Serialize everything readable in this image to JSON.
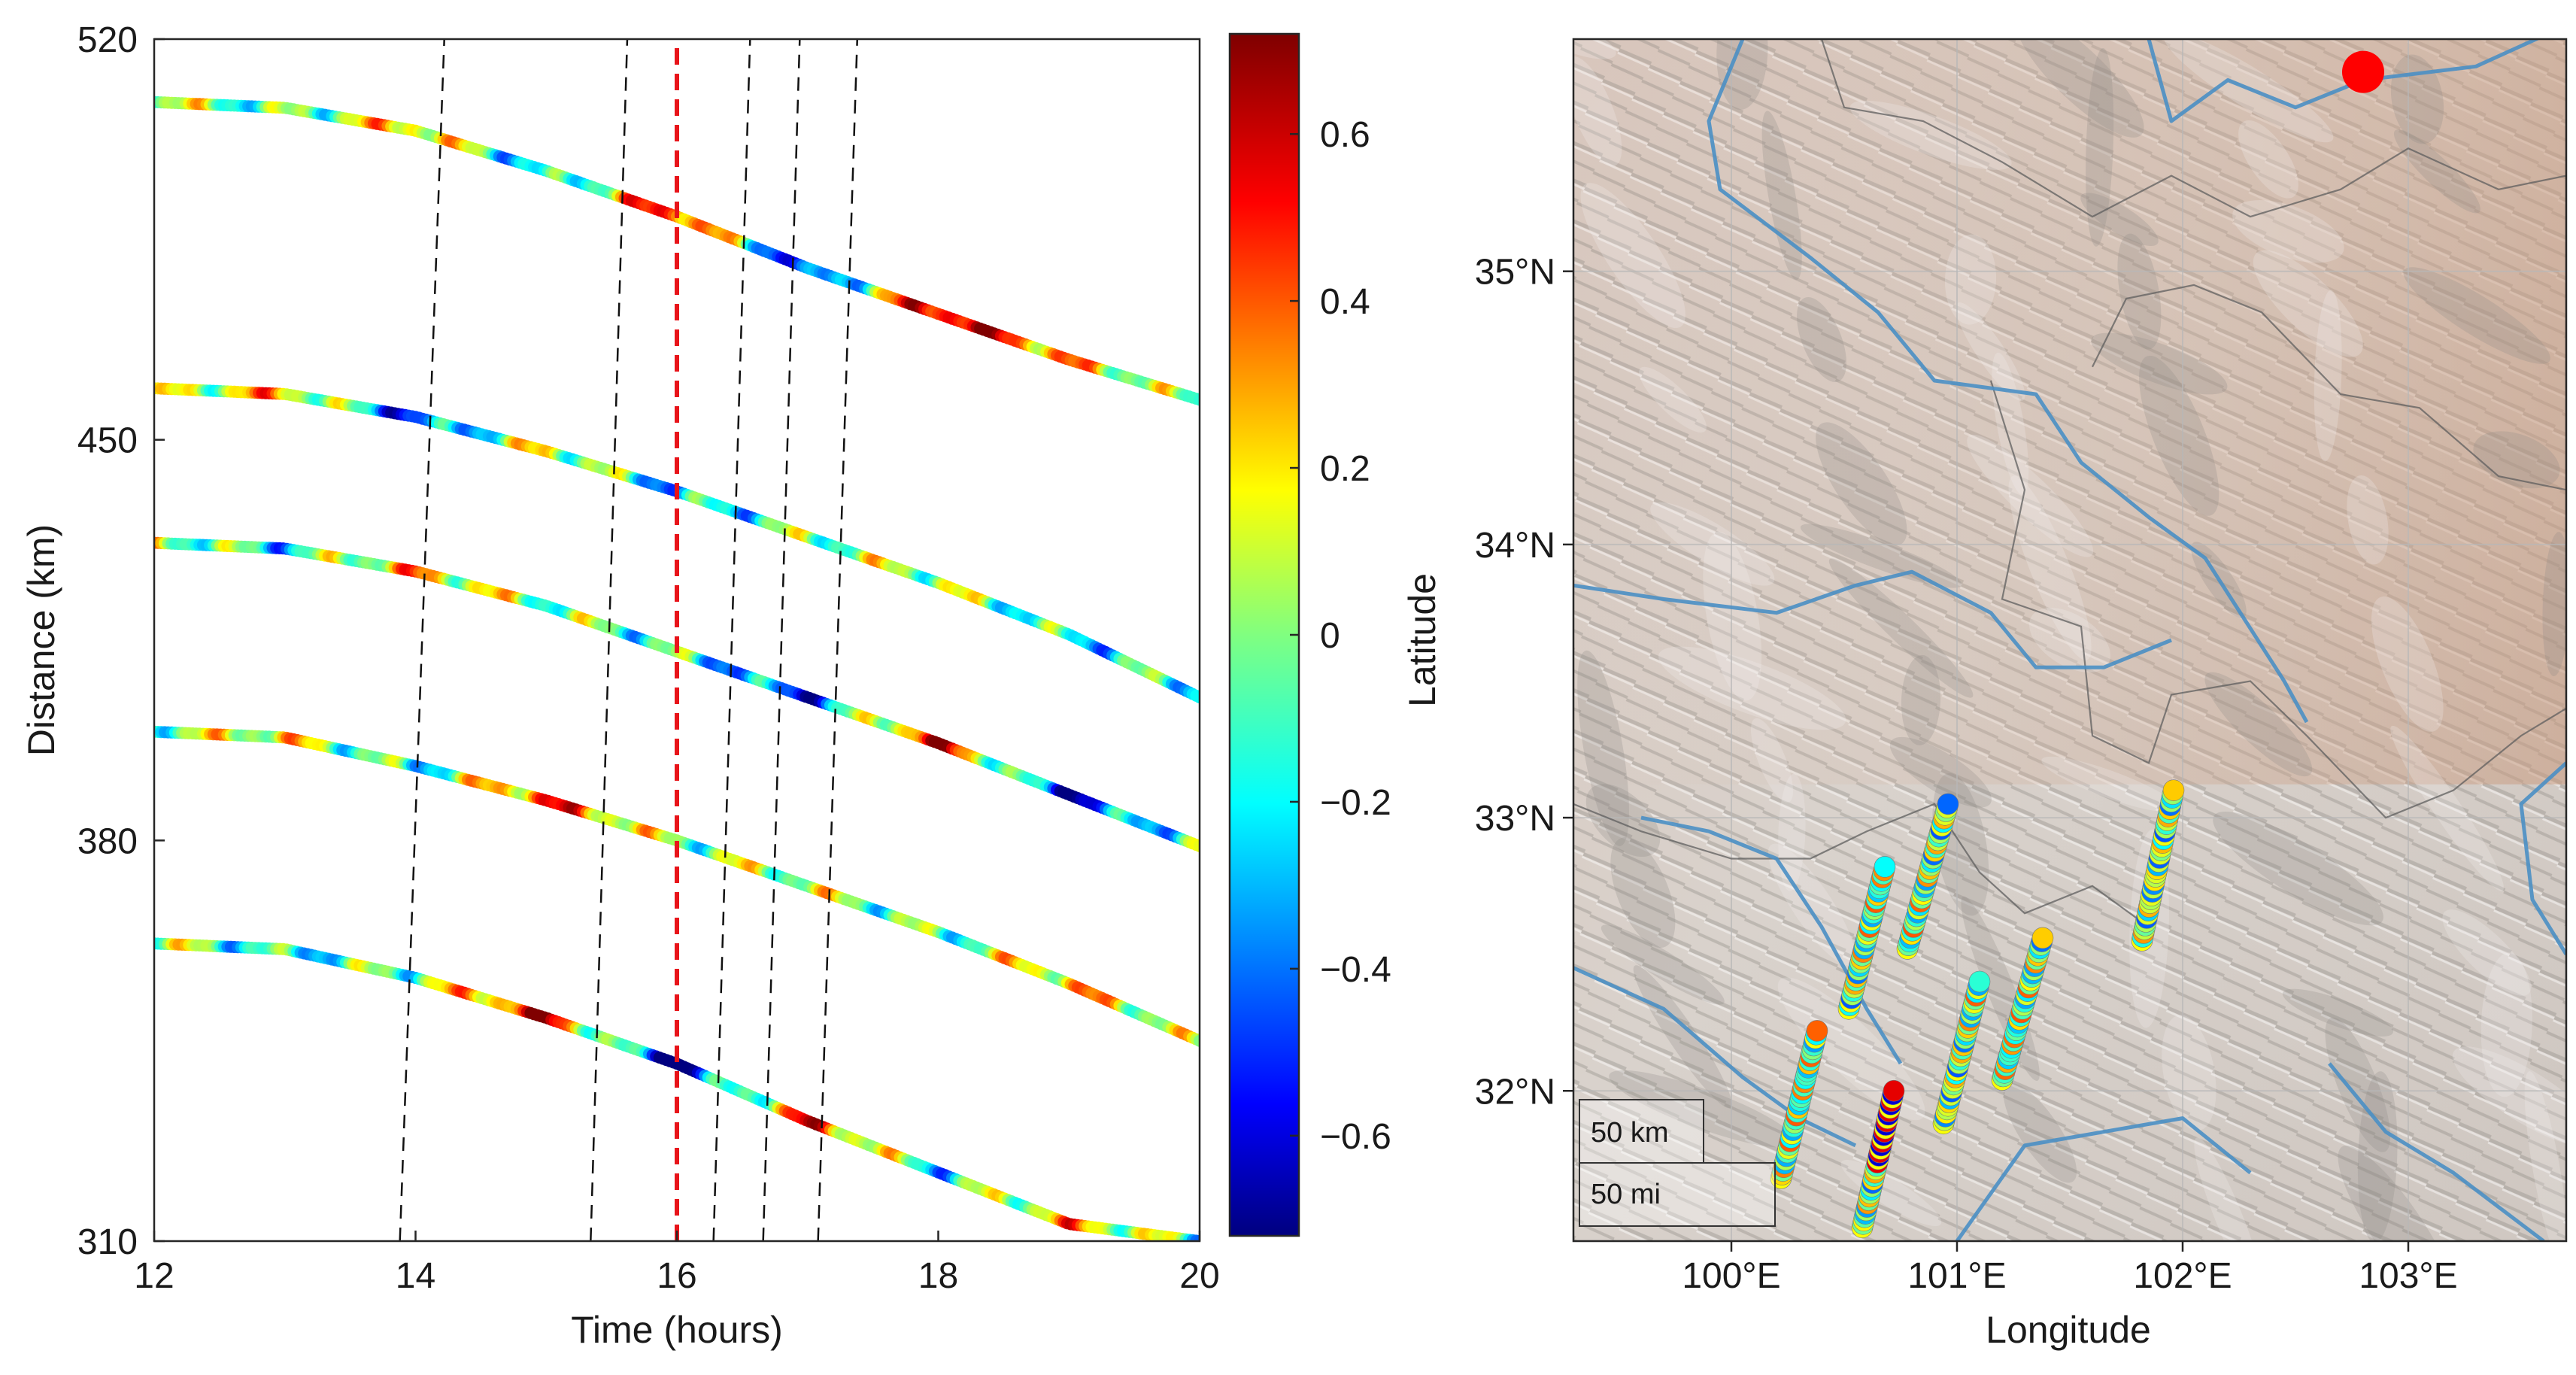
{
  "chart_data": [
    {
      "type": "scatter",
      "title": "",
      "xlabel": "Time (hours)",
      "ylabel": "Distance (km)",
      "xlim": [
        12,
        20
      ],
      "ylim": [
        310,
        520
      ],
      "xticks": [
        12,
        14,
        16,
        18,
        20
      ],
      "yticks": [
        310,
        380,
        450,
        520
      ],
      "xtick_labels": [
        "12",
        "14",
        "16",
        "18",
        "20"
      ],
      "ytick_labels": [
        "310",
        "380",
        "450",
        "520"
      ],
      "grid": false,
      "series": [
        {
          "x": [
            12,
            13,
            14,
            15,
            16,
            17,
            18,
            19,
            20
          ],
          "y": [
            509,
            508,
            504,
            497,
            489,
            480,
            472,
            464,
            457
          ],
          "values": [
            0.1,
            -0.1,
            0.3,
            -0.3,
            0.6,
            -0.6,
            0.7,
            0.3,
            -0.1
          ]
        },
        {
          "x": [
            12,
            13,
            14,
            15,
            16,
            17,
            18,
            19,
            20
          ],
          "y": [
            459,
            458,
            454,
            448,
            441,
            433,
            425,
            416,
            405
          ],
          "values": [
            0.0,
            0.3,
            -0.5,
            0.2,
            -0.3,
            0.0,
            0.1,
            -0.2,
            -0.1
          ]
        },
        {
          "x": [
            12,
            13,
            14,
            15,
            16,
            17,
            18,
            19,
            20
          ],
          "y": [
            432,
            431,
            427,
            421,
            413,
            405,
            397,
            388,
            379
          ],
          "values": [
            0.1,
            -0.2,
            0.3,
            0.0,
            -0.1,
            -0.5,
            0.6,
            -0.6,
            0.0
          ]
        },
        {
          "x": [
            12,
            13,
            14,
            15,
            16,
            17,
            18,
            19,
            20
          ],
          "y": [
            399,
            398,
            393,
            387,
            380,
            372,
            364,
            355,
            345
          ],
          "values": [
            0.0,
            0.2,
            -0.2,
            0.5,
            0.0,
            0.1,
            -0.1,
            0.3,
            0.0
          ]
        },
        {
          "x": [
            12,
            13,
            14,
            15,
            16,
            17,
            18,
            19,
            20
          ],
          "y": [
            362,
            361,
            356,
            349,
            341,
            331,
            322,
            313,
            310
          ],
          "values": [
            0.1,
            -0.2,
            0.0,
            0.6,
            -0.7,
            0.5,
            -0.2,
            0.3,
            -0.1
          ]
        }
      ],
      "dashed_lines_black": [
        {
          "x": [
            13.88,
            14.22
          ],
          "y": [
            310,
            520
          ]
        },
        {
          "x": [
            15.34,
            15.62
          ],
          "y": [
            310,
            520
          ]
        },
        {
          "x": [
            16.28,
            16.56
          ],
          "y": [
            310,
            520
          ]
        },
        {
          "x": [
            16.66,
            16.94
          ],
          "y": [
            310,
            520
          ]
        },
        {
          "x": [
            17.08,
            17.38
          ],
          "y": [
            310,
            520
          ]
        }
      ],
      "dashed_line_red": {
        "x": [
          16,
          16
        ],
        "y": [
          310,
          520
        ]
      },
      "colorbar": {
        "colormap": "jet",
        "range": [
          -0.72,
          0.72
        ],
        "ticks": [
          -0.6,
          -0.4,
          -0.2,
          0,
          0.2,
          0.4,
          0.6
        ],
        "tick_labels": [
          "−0.6",
          "−0.4",
          "−0.2",
          "0",
          "0.2",
          "0.4",
          "0.6"
        ]
      }
    },
    {
      "type": "scatter",
      "title": "",
      "xlabel": "Longitude",
      "ylabel": "Latitude",
      "xlim": [
        99.3,
        103.7
      ],
      "ylim": [
        31.45,
        35.85
      ],
      "xticks": [
        100,
        101,
        102,
        103
      ],
      "yticks": [
        32,
        33,
        34,
        35
      ],
      "xtick_labels": [
        "100°E",
        "101°E",
        "102°E",
        "103°E"
      ],
      "ytick_labels": [
        "32°N",
        "33°N",
        "34°N",
        "35°N"
      ],
      "basemap": "shaded relief",
      "grid": true,
      "scale_bar": {
        "km_label": "50 km",
        "mi_label": "50 mi"
      },
      "source_marker": {
        "lon": 102.8,
        "lat": 35.73,
        "color": "#ff0000"
      },
      "station_tracks": [
        {
          "lon": [
            100.22,
            100.38
          ],
          "lat": [
            31.68,
            32.22
          ]
        },
        {
          "lon": [
            100.58,
            100.72
          ],
          "lat": [
            31.5,
            32.0
          ]
        },
        {
          "lon": [
            100.52,
            100.68
          ],
          "lat": [
            32.3,
            32.82
          ]
        },
        {
          "lon": [
            100.78,
            100.96
          ],
          "lat": [
            32.52,
            33.05
          ]
        },
        {
          "lon": [
            100.94,
            101.1
          ],
          "lat": [
            31.88,
            32.4
          ]
        },
        {
          "lon": [
            101.2,
            101.38
          ],
          "lat": [
            32.04,
            32.56
          ]
        },
        {
          "lon": [
            101.82,
            101.96
          ],
          "lat": [
            32.55,
            33.1
          ]
        }
      ]
    }
  ]
}
